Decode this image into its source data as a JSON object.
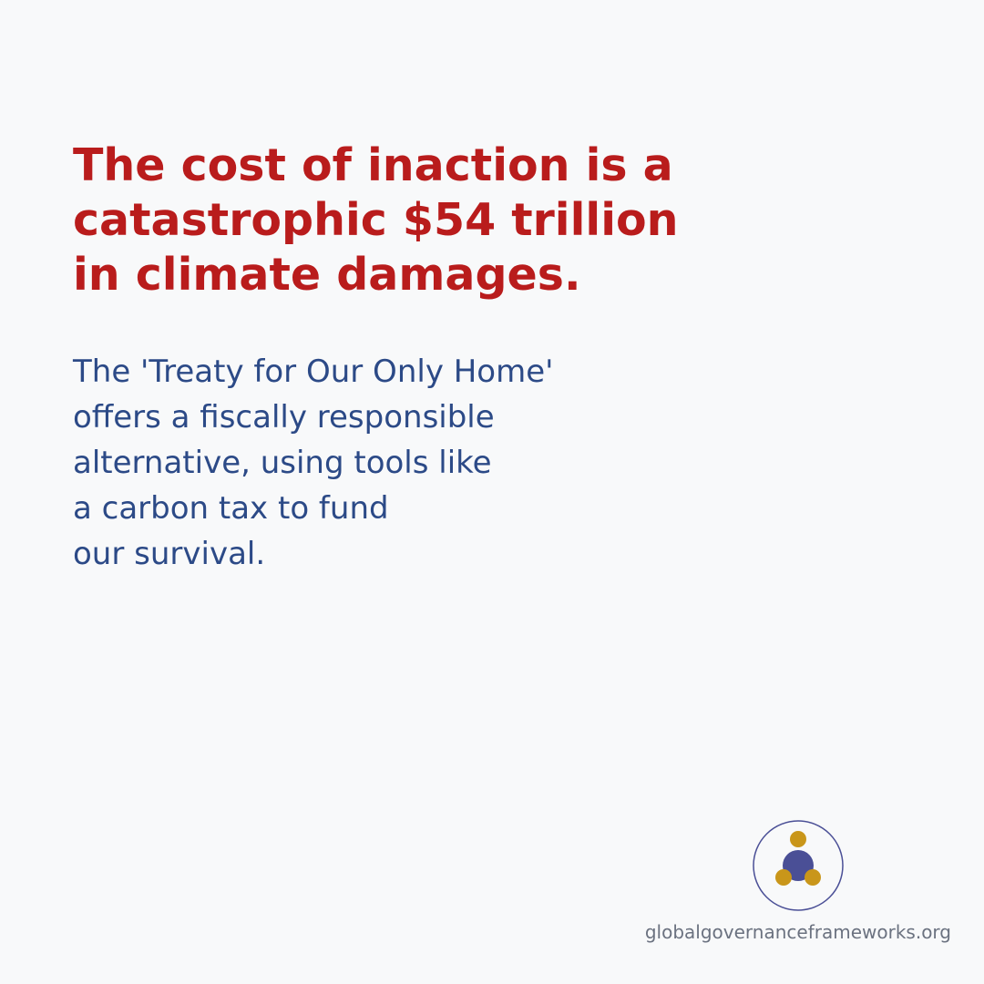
{
  "headline": {
    "lines": [
      "The cost of inaction is a",
      "catastrophic $54 trillion",
      "in climate damages."
    ]
  },
  "body": {
    "lines": [
      "The 'Treaty for Our Only Home'",
      "offers a fiscally responsible",
      "alternative, using tools like",
      "a carbon tax to fund",
      "our survival."
    ]
  },
  "logo": {
    "icon": "globe-people-logo-icon",
    "ring_color": "#4a4f96",
    "center_color": "#4a4f96",
    "dot_color": "#c9961a"
  },
  "footer": {
    "url": "globalgovernanceframeworks.org"
  },
  "colors": {
    "background": "#f8f9fa",
    "headline": "#b91c1c",
    "body": "#2c4a87",
    "footer": "#6b7280"
  }
}
